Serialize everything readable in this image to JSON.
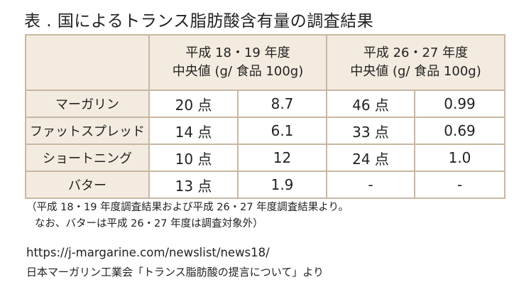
{
  "title": "表 . 国によるトランス脂肪酸含有量の調査結果",
  "table": {
    "col_groups": [
      {
        "period": "平成 18・19 年度",
        "measure": "中央値 (g/ 食品 100g)"
      },
      {
        "period": "平成 26・27 年度",
        "measure": "中央値 (g/ 食品 100g)"
      }
    ],
    "rows": [
      {
        "label": "マーガリン",
        "c1": "20 点",
        "c2": "8.7",
        "c3": "46 点",
        "c4": "0.99"
      },
      {
        "label": "ファットスプレッド",
        "c1": "14 点",
        "c2": "6.1",
        "c3": "33 点",
        "c4": "0.69"
      },
      {
        "label": "ショートニング",
        "c1": "10 点",
        "c2": "12",
        "c3": "24 点",
        "c4": "1.0"
      },
      {
        "label": "バター",
        "c1": "13 点",
        "c2": "1.9",
        "c3": "-",
        "c4": "-"
      }
    ]
  },
  "notes": {
    "line1": "（平成 18・19 年度調査結果および平成 26・27 年度調査結果より。",
    "line2": "なお、バターは平成 26・27 年度は調査対象外）"
  },
  "url": "https://j-margarine.com/newslist/news18/",
  "source": "日本マーガリン工業会「トランス脂肪酸の提言について」より"
}
